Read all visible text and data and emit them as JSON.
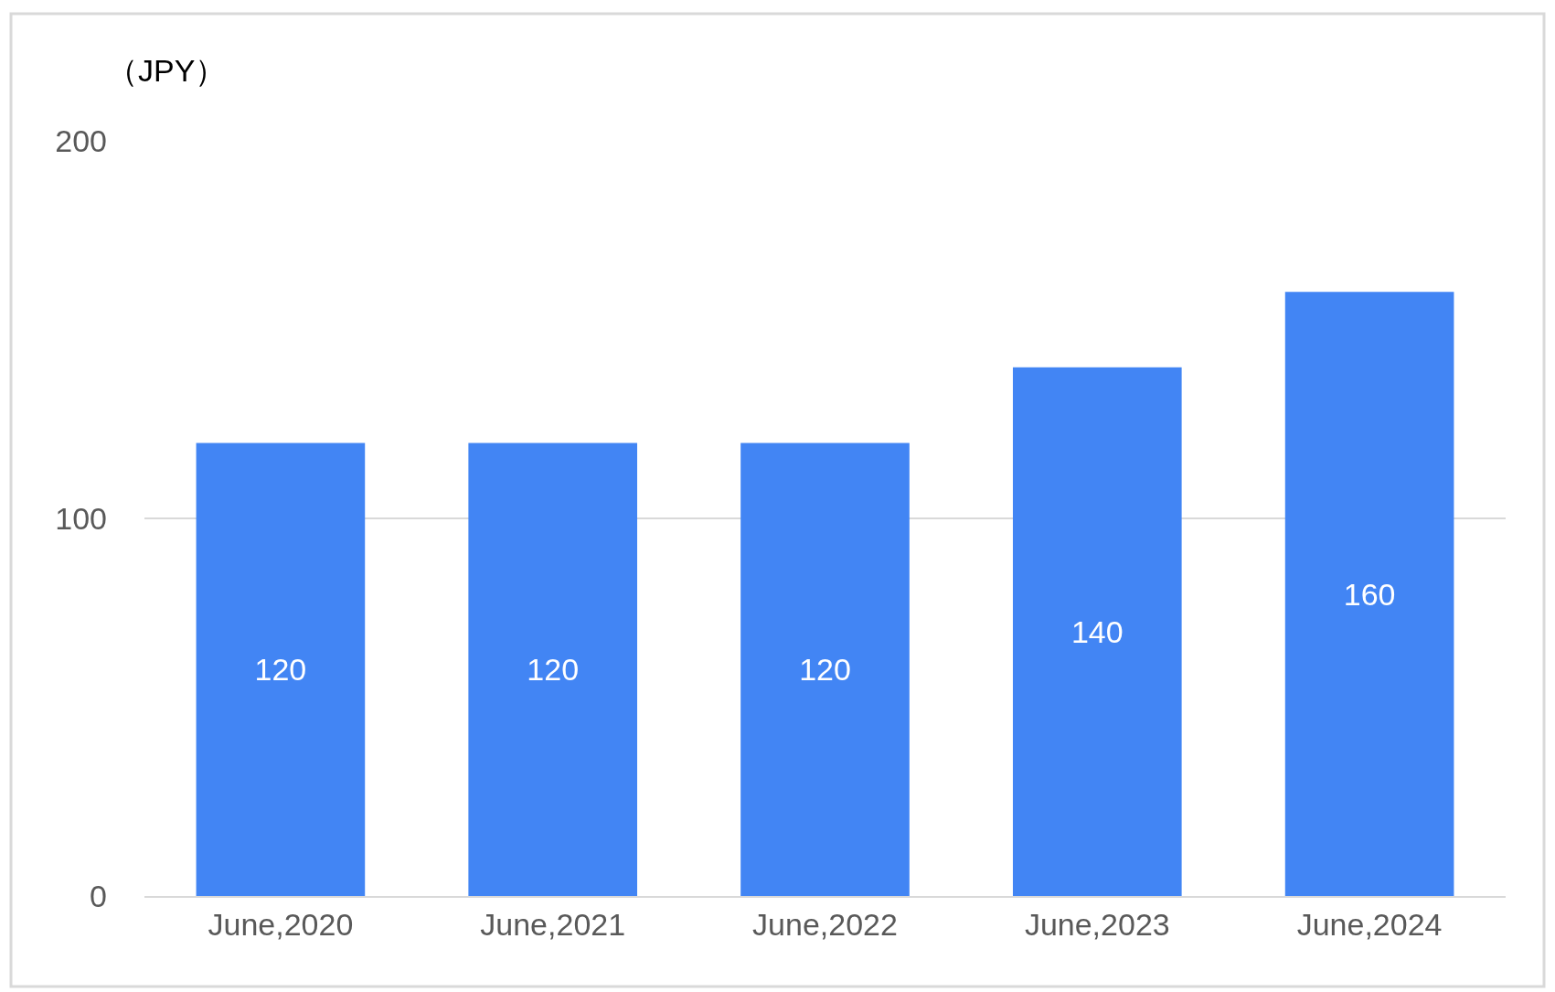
{
  "chart_data": {
    "type": "bar",
    "ylabel": "（JPY）",
    "categories": [
      "June,2020",
      "June,2021",
      "June,2022",
      "June,2023",
      "June,2024"
    ],
    "values": [
      120,
      120,
      120,
      140,
      160
    ],
    "color": "#4285f4",
    "ylim": [
      0,
      200
    ],
    "yticks": [
      0,
      100,
      200
    ],
    "grid": "y",
    "data_labels": true,
    "legend": false
  }
}
